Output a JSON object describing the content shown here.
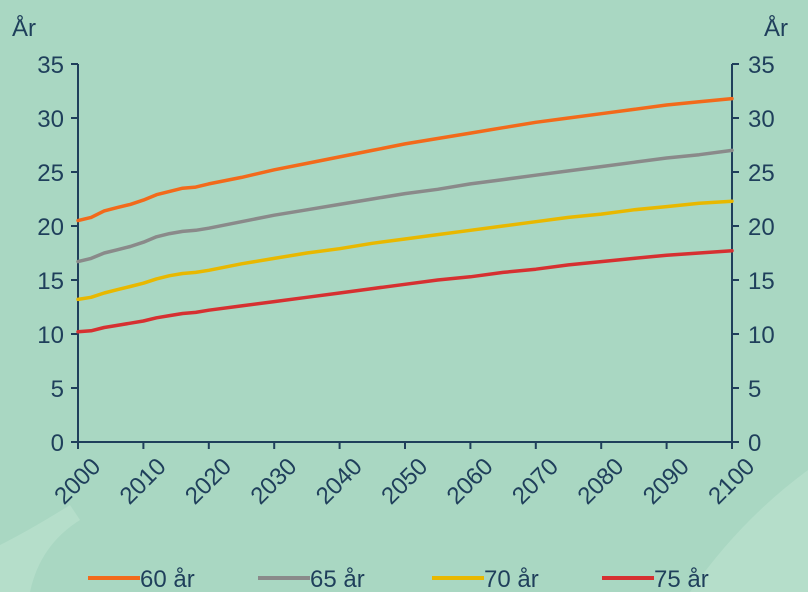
{
  "chart_data": {
    "type": "line",
    "title": "",
    "xlabel": "",
    "ylabel_left": "År",
    "ylabel_right": "År",
    "xlim": [
      2000,
      2100
    ],
    "ylim": [
      0,
      35
    ],
    "x_ticks": [
      "2000",
      "2010",
      "2020",
      "2030",
      "2040",
      "2050",
      "2060",
      "2070",
      "2080",
      "2090",
      "2100"
    ],
    "y_ticks": [
      "0",
      "5",
      "10",
      "15",
      "20",
      "25",
      "30",
      "35"
    ],
    "grid": false,
    "legend_position": "bottom",
    "x": [
      2000,
      2002,
      2004,
      2006,
      2008,
      2010,
      2012,
      2014,
      2016,
      2018,
      2020,
      2025,
      2030,
      2035,
      2040,
      2045,
      2050,
      2055,
      2060,
      2065,
      2070,
      2075,
      2080,
      2085,
      2090,
      2095,
      2100
    ],
    "series": [
      {
        "name": "60 år",
        "color": "#f26a1b",
        "values": [
          20.5,
          20.8,
          21.4,
          21.7,
          22.0,
          22.4,
          22.9,
          23.2,
          23.5,
          23.6,
          23.9,
          24.5,
          25.2,
          25.8,
          26.4,
          27.0,
          27.6,
          28.1,
          28.6,
          29.1,
          29.6,
          30.0,
          30.4,
          30.8,
          31.2,
          31.5,
          31.8
        ]
      },
      {
        "name": "65 år",
        "color": "#8a8a8a",
        "values": [
          16.7,
          17.0,
          17.5,
          17.8,
          18.1,
          18.5,
          19.0,
          19.3,
          19.5,
          19.6,
          19.8,
          20.4,
          21.0,
          21.5,
          22.0,
          22.5,
          23.0,
          23.4,
          23.9,
          24.3,
          24.7,
          25.1,
          25.5,
          25.9,
          26.3,
          26.6,
          27.0
        ]
      },
      {
        "name": "70 år",
        "color": "#e8b800",
        "values": [
          13.2,
          13.4,
          13.8,
          14.1,
          14.4,
          14.7,
          15.1,
          15.4,
          15.6,
          15.7,
          15.9,
          16.5,
          17.0,
          17.5,
          17.9,
          18.4,
          18.8,
          19.2,
          19.6,
          20.0,
          20.4,
          20.8,
          21.1,
          21.5,
          21.8,
          22.1,
          22.3
        ]
      },
      {
        "name": "75 år",
        "color": "#d63031",
        "values": [
          10.2,
          10.3,
          10.6,
          10.8,
          11.0,
          11.2,
          11.5,
          11.7,
          11.9,
          12.0,
          12.2,
          12.6,
          13.0,
          13.4,
          13.8,
          14.2,
          14.6,
          15.0,
          15.3,
          15.7,
          16.0,
          16.4,
          16.7,
          17.0,
          17.3,
          17.5,
          17.7
        ]
      }
    ]
  }
}
